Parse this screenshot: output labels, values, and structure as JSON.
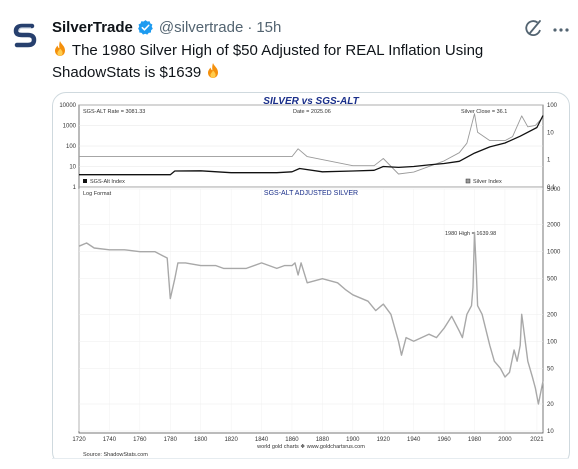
{
  "tweet": {
    "author_name": "SilverTrade",
    "handle": "@silvertrade",
    "separator": "·",
    "time": "15h",
    "text_line1": "The 1980 Silver High of $50 Adjusted for REAL Inflation Using",
    "text_line2": "ShadowStats is $1639",
    "accent_color": "#1d9bf0"
  },
  "icons": {
    "avatar": "silvertrade-logo-icon",
    "verified": "verified-badge-icon",
    "grok": "grok-icon",
    "more": "more-icon",
    "fire": "fire-emoji-icon"
  },
  "chart_data": [
    {
      "type": "line",
      "title": "SILVER vs SGS-ALT",
      "scale": "log",
      "top_left_label": "SGS-ALT Rate = 3081.33",
      "top_center_label": "Date = 2025.06",
      "top_right_label": "Silver Close = 36.1",
      "left_ticks": [
        "10000",
        "1000",
        "100",
        "10",
        "1"
      ],
      "right_ticks": [
        "100",
        "10",
        "1",
        "0.1"
      ],
      "legend_left": "SGS-Alt Index",
      "legend_right": "Silver Index",
      "series": [
        {
          "name": "SGS-Alt Index",
          "color": "#111111",
          "x": [
            1720,
            1750,
            1780,
            1783,
            1800,
            1820,
            1850,
            1860,
            1865,
            1880,
            1900,
            1914,
            1920,
            1930,
            1940,
            1950,
            1960,
            1970,
            1980,
            1990,
            2000,
            2010,
            2021,
            2025
          ],
          "y": [
            4,
            4,
            4,
            6,
            6.2,
            5,
            5,
            5.5,
            8,
            5.5,
            6,
            6.5,
            10,
            9,
            10,
            12,
            14,
            18,
            45,
            90,
            140,
            300,
            800,
            3081
          ]
        },
        {
          "name": "Silver Index",
          "color": "#9a9a9a",
          "x": [
            1720,
            1750,
            1780,
            1800,
            1840,
            1860,
            1864,
            1870,
            1900,
            1914,
            1920,
            1930,
            1940,
            1960,
            1970,
            1975,
            1980,
            1982,
            1990,
            2000,
            2005,
            2011,
            2015,
            2020,
            2025
          ],
          "y": [
            1.3,
            1.3,
            1.3,
            1.3,
            1.3,
            1.3,
            2.5,
            1.3,
            0.6,
            0.6,
            1.1,
            0.3,
            0.35,
            0.9,
            1.8,
            4,
            48,
            10,
            5,
            5,
            7,
            40,
            16,
            18,
            36.1
          ]
        }
      ]
    },
    {
      "type": "line",
      "title": "SGS-ALT ADJUSTED  SILVER",
      "scale_label": "Log Format",
      "annotation": "1980 High = 1639.98",
      "x_ticks": [
        "1720",
        "1740",
        "1760",
        "1780",
        "1800",
        "1820",
        "1840",
        "1860",
        "1880",
        "1900",
        "1920",
        "1940",
        "1960",
        "1980",
        "2000",
        "2021"
      ],
      "y_ticks": [
        "5000",
        "2000",
        "1000",
        "500",
        "200",
        "100",
        "50",
        "20",
        "10"
      ],
      "source": "Source: ShadowStats.com",
      "credit": "world gold charts ❖ www.goldchartsrus.com",
      "series": [
        {
          "name": "SGS-ALT ADJUSTED SILVER",
          "color": "#a8a8a8",
          "x": [
            1720,
            1725,
            1730,
            1740,
            1750,
            1760,
            1770,
            1775,
            1778,
            1780,
            1783,
            1785,
            1790,
            1800,
            1810,
            1815,
            1820,
            1830,
            1840,
            1845,
            1850,
            1855,
            1860,
            1862,
            1864,
            1866,
            1870,
            1880,
            1890,
            1895,
            1900,
            1910,
            1915,
            1920,
            1925,
            1930,
            1932,
            1935,
            1940,
            1950,
            1955,
            1960,
            1965,
            1970,
            1972,
            1975,
            1978,
            1979,
            1980,
            1981,
            1982,
            1985,
            1990,
            1993,
            1997,
            2000,
            2003,
            2006,
            2008,
            2010,
            2011,
            2012,
            2015,
            2018,
            2020,
            2022,
            2025
          ],
          "y": [
            1150,
            1250,
            1100,
            1050,
            1050,
            1000,
            1000,
            900,
            850,
            300,
            500,
            750,
            750,
            700,
            700,
            650,
            650,
            650,
            750,
            700,
            650,
            700,
            700,
            750,
            550,
            750,
            450,
            500,
            450,
            380,
            330,
            280,
            220,
            260,
            200,
            100,
            70,
            110,
            100,
            120,
            110,
            140,
            190,
            130,
            110,
            200,
            250,
            400,
            1640,
            700,
            250,
            200,
            90,
            60,
            50,
            40,
            45,
            80,
            60,
            90,
            200,
            150,
            60,
            40,
            30,
            20,
            36
          ]
        }
      ]
    }
  ]
}
